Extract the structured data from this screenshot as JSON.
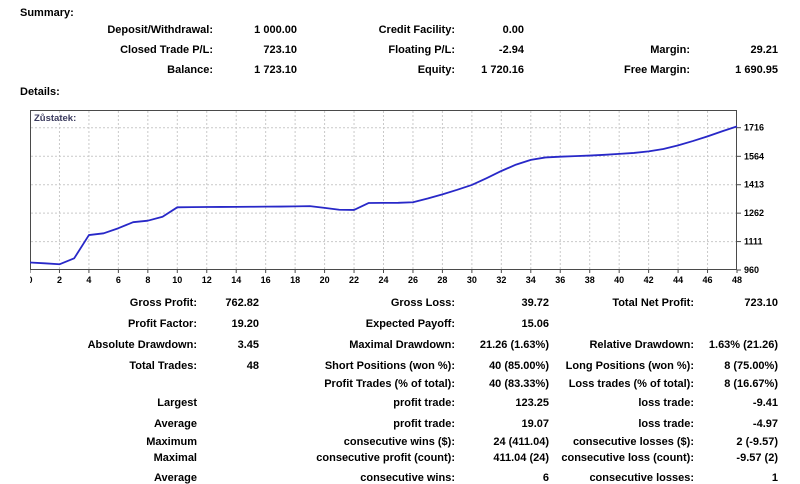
{
  "summary": {
    "heading": "Summary:",
    "rows": [
      [
        {
          "label": "Deposit/Withdrawal:",
          "value": "1 000.00"
        },
        {
          "label": "Credit Facility:",
          "value": "0.00"
        },
        {
          "label": "",
          "value": ""
        }
      ],
      [
        {
          "label": "Closed Trade P/L:",
          "value": "723.10"
        },
        {
          "label": "Floating P/L:",
          "value": "-2.94"
        },
        {
          "label": "Margin:",
          "value": "29.21"
        }
      ],
      [
        {
          "label": "Balance:",
          "value": "1 723.10"
        },
        {
          "label": "Equity:",
          "value": "1 720.16"
        },
        {
          "label": "Free Margin:",
          "value": "1 690.95"
        }
      ]
    ]
  },
  "details": {
    "heading": "Details:",
    "rows": [
      [
        {
          "label": "Gross Profit:",
          "value": "762.82"
        },
        {
          "label": "Gross Loss:",
          "value": "39.72"
        },
        {
          "label": "Total Net Profit:",
          "value": "723.10"
        }
      ],
      [
        {
          "label": "Profit Factor:",
          "value": "19.20"
        },
        {
          "label": "Expected Payoff:",
          "value": "15.06"
        },
        {
          "label": "",
          "value": ""
        }
      ],
      [
        {
          "label": "Absolute Drawdown:",
          "value": "3.45"
        },
        {
          "label": "Maximal Drawdown:",
          "value": "21.26 (1.63%)"
        },
        {
          "label": "Relative Drawdown:",
          "value": "1.63% (21.26)"
        }
      ],
      [
        {
          "label": "Total Trades:",
          "value": "48"
        },
        {
          "label": "Short Positions (won %):",
          "value": "40 (85.00%)"
        },
        {
          "label": "Long Positions (won %):",
          "value": "8 (75.00%)"
        }
      ],
      [
        {
          "label": "",
          "value": ""
        },
        {
          "label": "Profit Trades (% of total):",
          "value": "40 (83.33%)"
        },
        {
          "label": "Loss trades (% of total):",
          "value": "8 (16.67%)"
        }
      ],
      [
        {
          "label": "Largest",
          "value": ""
        },
        {
          "label": "profit trade:",
          "value": "123.25"
        },
        {
          "label": "loss trade:",
          "value": "-9.41"
        }
      ],
      [
        {
          "label": "Average",
          "value": ""
        },
        {
          "label": "profit trade:",
          "value": "19.07"
        },
        {
          "label": "loss trade:",
          "value": "-4.97"
        }
      ],
      [
        {
          "label": "Maximum",
          "value": ""
        },
        {
          "label": "consecutive wins ($):",
          "value": "24 (411.04)"
        },
        {
          "label": "consecutive losses ($):",
          "value": "2 (-9.57)"
        }
      ],
      [
        {
          "label": "Maximal",
          "value": ""
        },
        {
          "label": "consecutive profit (count):",
          "value": "411.04 (24)"
        },
        {
          "label": "consecutive loss (count):",
          "value": "-9.57 (2)"
        }
      ],
      [
        {
          "label": "Average",
          "value": ""
        },
        {
          "label": "consecutive wins:",
          "value": "6"
        },
        {
          "label": "consecutive losses:",
          "value": "1"
        }
      ]
    ]
  },
  "chart_data": {
    "type": "line",
    "title": "Zůstatek:",
    "xlabel": "",
    "ylabel": "",
    "xlim": [
      0,
      48
    ],
    "ylim": [
      960,
      1810
    ],
    "xticks": [
      0,
      2,
      4,
      6,
      8,
      10,
      12,
      14,
      16,
      18,
      20,
      22,
      24,
      26,
      28,
      30,
      32,
      34,
      36,
      38,
      40,
      42,
      44,
      46,
      48
    ],
    "yticks": [
      960,
      1111,
      1262,
      1413,
      1564,
      1716
    ],
    "grid": true,
    "legend_position": "none",
    "line_color": "#2828c8",
    "title_color": "#3b3b5e",
    "series": [
      {
        "name": "Zůstatek (account balance by trade #)",
        "x": [
          0,
          1,
          2,
          3,
          4,
          5,
          6,
          7,
          8,
          9,
          10,
          11,
          12,
          13,
          14,
          15,
          16,
          17,
          18,
          19,
          20,
          21,
          22,
          23,
          24,
          25,
          26,
          27,
          28,
          29,
          30,
          31,
          32,
          33,
          34,
          35,
          36,
          37,
          38,
          39,
          40,
          41,
          42,
          43,
          44,
          45,
          46,
          47,
          48
        ],
        "values": [
          1000,
          995.5,
          990.4,
          1022,
          1145.7,
          1155,
          1182,
          1214,
          1222,
          1243,
          1293,
          1294,
          1294.5,
          1295,
          1295.5,
          1296,
          1296.5,
          1297,
          1298,
          1299.5,
          1290,
          1280,
          1279,
          1316,
          1316.5,
          1317,
          1320,
          1340,
          1362,
          1386,
          1412,
          1448,
          1486,
          1520,
          1545,
          1558,
          1562,
          1565,
          1568,
          1572,
          1577,
          1582,
          1590,
          1603,
          1622,
          1645,
          1670,
          1697,
          1723.1
        ]
      }
    ]
  }
}
